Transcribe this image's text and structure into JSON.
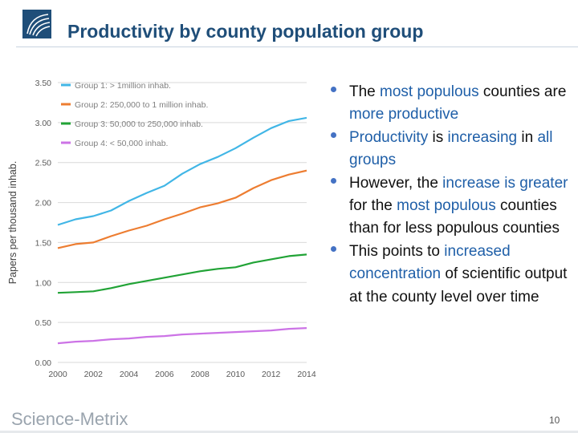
{
  "slide": {
    "title": "Productivity by county population group",
    "page_number": "10",
    "footer_logo": "Science-Metrix"
  },
  "bullets": [
    [
      {
        "t": "The ",
        "hl": false
      },
      {
        "t": "most populous",
        "hl": true
      },
      {
        "t": " counties are ",
        "hl": false
      },
      {
        "t": "more productive",
        "hl": true
      }
    ],
    [
      {
        "t": "Productivity",
        "hl": true
      },
      {
        "t": " is ",
        "hl": false
      },
      {
        "t": "increasing",
        "hl": true
      },
      {
        "t": " in ",
        "hl": false
      },
      {
        "t": "all groups",
        "hl": true
      }
    ],
    [
      {
        "t": "However, the ",
        "hl": false
      },
      {
        "t": "increase is greater",
        "hl": true
      },
      {
        "t": " for the ",
        "hl": false
      },
      {
        "t": "most populous",
        "hl": true
      },
      {
        "t": " counties than for less populous counties",
        "hl": false
      }
    ],
    [
      {
        "t": "This points to ",
        "hl": false
      },
      {
        "t": "increased concentration",
        "hl": true
      },
      {
        "t": " of scientific output at the county level over time",
        "hl": false
      }
    ]
  ],
  "chart_data": {
    "type": "line",
    "title": "",
    "xlabel": "",
    "ylabel": "Papers per thousand inhab.",
    "x": [
      2000,
      2001,
      2002,
      2003,
      2004,
      2005,
      2006,
      2007,
      2008,
      2009,
      2010,
      2011,
      2012,
      2013,
      2014
    ],
    "x_ticks": [
      "2000",
      "2002",
      "2004",
      "2006",
      "2008",
      "2010",
      "2012",
      "2014"
    ],
    "y_ticks": [
      "0.00",
      "0.50",
      "1.00",
      "1.50",
      "2.00",
      "2.50",
      "3.00",
      "3.50"
    ],
    "ylim": [
      0,
      3.5
    ],
    "grid": "horizontal",
    "legend_position": "top-left",
    "series": [
      {
        "name": "Group 1: > 1million inhab.",
        "color": "#41b6e6",
        "values": [
          1.72,
          1.79,
          1.83,
          1.9,
          2.02,
          2.12,
          2.21,
          2.36,
          2.48,
          2.57,
          2.68,
          2.81,
          2.93,
          3.02,
          3.06
        ]
      },
      {
        "name": "Group 2: 250,000 to 1 million inhab.",
        "color": "#ed7d31",
        "values": [
          1.43,
          1.48,
          1.5,
          1.58,
          1.65,
          1.71,
          1.79,
          1.86,
          1.94,
          1.99,
          2.06,
          2.18,
          2.28,
          2.35,
          2.4
        ]
      },
      {
        "name": "Group 3: 50,000 to 250,000 inhab.",
        "color": "#21a336",
        "values": [
          0.87,
          0.88,
          0.89,
          0.93,
          0.98,
          1.02,
          1.06,
          1.1,
          1.14,
          1.17,
          1.19,
          1.25,
          1.29,
          1.33,
          1.35
        ]
      },
      {
        "name": "Group 4: < 50,000 inhab.",
        "color": "#cc73e6",
        "values": [
          0.24,
          0.26,
          0.27,
          0.29,
          0.3,
          0.32,
          0.33,
          0.35,
          0.36,
          0.37,
          0.38,
          0.39,
          0.4,
          0.42,
          0.43
        ]
      }
    ]
  }
}
